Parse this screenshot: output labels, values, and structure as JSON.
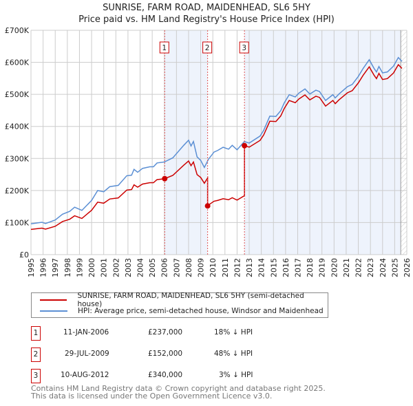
{
  "chart_data": {
    "type": "line",
    "title": "SUNRISE, FARM ROAD, MAIDENHEAD, SL6 5HY",
    "subtitle": "Price paid vs. HM Land Registry's House Price Index (HPI)",
    "xlim": [
      1995,
      2026
    ],
    "ylim": [
      0,
      700000
    ],
    "x_ticks": [
      "1995",
      "1996",
      "1997",
      "1998",
      "1999",
      "2000",
      "2001",
      "2002",
      "2003",
      "2004",
      "2005",
      "2006",
      "2007",
      "2008",
      "2009",
      "2010",
      "2011",
      "2012",
      "2013",
      "2014",
      "2015",
      "2016",
      "2017",
      "2018",
      "2019",
      "2020",
      "2021",
      "2022",
      "2023",
      "2024",
      "2025",
      "2026"
    ],
    "y_ticks": [
      {
        "v": 0,
        "label": "£0"
      },
      {
        "v": 100000,
        "label": "£100K"
      },
      {
        "v": 200000,
        "label": "£200K"
      },
      {
        "v": 300000,
        "label": "£300K"
      },
      {
        "v": 400000,
        "label": "£400K"
      },
      {
        "v": 500000,
        "label": "£500K"
      },
      {
        "v": 600000,
        "label": "£600K"
      },
      {
        "v": 700000,
        "label": "£700K"
      }
    ],
    "grid": true,
    "colors": {
      "price": "#cc0000",
      "hpi": "#5b8fd4",
      "shade": "#eef3fc"
    },
    "hpi": {
      "name": "HPI: Average price, semi-detached house, Windsor and Maidenhead",
      "x": [
        1995.0,
        1995.9,
        1996.2,
        1997.0,
        1997.6,
        1998.2,
        1998.6,
        1999.2,
        2000.0,
        2000.5,
        2001.0,
        2001.5,
        2002.2,
        2002.9,
        2003.3,
        2003.5,
        2003.8,
        2004.2,
        2004.8,
        2005.1,
        2005.4,
        2006.0,
        2006.7,
        2007.6,
        2008.0,
        2008.2,
        2008.4,
        2008.7,
        2009.0,
        2009.3,
        2009.65,
        2010.1,
        2010.4,
        2010.85,
        2011.3,
        2011.6,
        2012.0,
        2012.6,
        2013.0,
        2013.9,
        2014.2,
        2014.7,
        2015.2,
        2015.6,
        2015.9,
        2016.3,
        2016.8,
        2017.1,
        2017.6,
        2018.0,
        2018.5,
        2018.8,
        2019.3,
        2019.9,
        2020.1,
        2020.4,
        2021.1,
        2021.5,
        2022.0,
        2022.4,
        2022.9,
        2023.3,
        2023.5,
        2023.7,
        2024.0,
        2024.4,
        2024.9,
        2025.3,
        2025.6
      ],
      "y": [
        96000,
        101000,
        97000,
        108000,
        126000,
        135000,
        148000,
        138000,
        169000,
        200000,
        196000,
        212000,
        216000,
        246000,
        248000,
        266000,
        257000,
        269000,
        274000,
        274000,
        286000,
        289000,
        302000,
        341000,
        357000,
        339000,
        353000,
        305000,
        294000,
        272000,
        298000,
        320000,
        325000,
        335000,
        329000,
        341000,
        327000,
        353000,
        348000,
        370000,
        388000,
        432000,
        431000,
        449000,
        474000,
        499000,
        492000,
        504000,
        517000,
        501000,
        513000,
        509000,
        481000,
        499000,
        489000,
        501000,
        524000,
        531000,
        556000,
        581000,
        608000,
        581000,
        570000,
        587000,
        567000,
        570000,
        588000,
        615000,
        603000
      ]
    },
    "price_paid": {
      "name": "SUNRISE, FARM ROAD, MAIDENHEAD, SL6 5HY (semi-detached house)"
    },
    "sales": [
      {
        "n": "1",
        "x": 2006.03,
        "date": "11-JAN-2006",
        "price": 237000,
        "price_label": "£237,000",
        "hpi_diff": "18% ↓ HPI"
      },
      {
        "n": "2",
        "x": 2009.57,
        "date": "29-JUL-2009",
        "price": 152000,
        "price_label": "£152,000",
        "hpi_diff": "48% ↓ HPI"
      },
      {
        "n": "3",
        "x": 2012.61,
        "date": "10-AUG-2012",
        "price": 340000,
        "price_label": "£340,000",
        "hpi_diff": "3% ↓ HPI"
      }
    ],
    "forecast_start": 2025.5
  },
  "footer": {
    "line1": "Contains HM Land Registry data © Crown copyright and database right 2025.",
    "line2": "This data is licensed under the Open Government Licence v3.0."
  }
}
